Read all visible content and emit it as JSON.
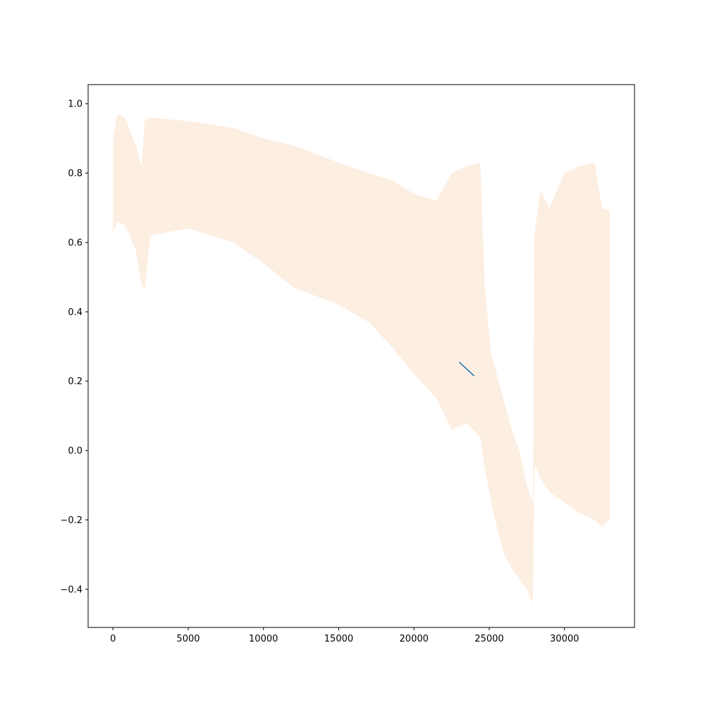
{
  "chart_data": {
    "type": "line",
    "title": "",
    "xlabel": "",
    "ylabel": "",
    "xlim": [
      -1650,
      34650
    ],
    "ylim": [
      -0.51,
      1.055
    ],
    "grid": false,
    "x_ticks": [
      0,
      5000,
      10000,
      15000,
      20000,
      25000,
      30000
    ],
    "x_tick_labels": [
      "0",
      "5000",
      "10000",
      "15000",
      "20000",
      "25000",
      "30000"
    ],
    "y_ticks": [
      -0.4,
      -0.2,
      0.0,
      0.2,
      0.4,
      0.6,
      0.8,
      1.0
    ],
    "y_tick_labels": [
      "−0.4",
      "−0.2",
      "0.0",
      "0.2",
      "0.4",
      "0.6",
      "0.8",
      "1.0"
    ],
    "series": [
      {
        "style": "band",
        "color": "#fdeee2",
        "x": [
          0,
          300,
          800,
          1500,
          1900,
          2100,
          2500,
          5000,
          8000,
          10000,
          12000,
          15000,
          17000,
          18500,
          20000,
          21500,
          22500,
          23500,
          24400,
          24700,
          25100,
          25500,
          26000,
          26500,
          27000,
          27500,
          27900,
          28000,
          28400,
          29000,
          30000,
          31000,
          32000,
          32500,
          33000
        ],
        "upper": [
          0.9,
          0.97,
          0.96,
          0.88,
          0.82,
          0.95,
          0.96,
          0.95,
          0.93,
          0.9,
          0.88,
          0.83,
          0.8,
          0.78,
          0.74,
          0.72,
          0.8,
          0.82,
          0.83,
          0.48,
          0.28,
          0.22,
          0.14,
          0.06,
          0.0,
          -0.1,
          -0.15,
          0.62,
          0.75,
          0.7,
          0.8,
          0.82,
          0.83,
          0.7,
          0.69
        ],
        "lower": [
          0.63,
          0.66,
          0.65,
          0.58,
          0.48,
          0.46,
          0.62,
          0.64,
          0.6,
          0.54,
          0.47,
          0.42,
          0.37,
          0.3,
          0.22,
          0.15,
          0.06,
          0.08,
          0.04,
          -0.05,
          -0.14,
          -0.22,
          -0.3,
          -0.34,
          -0.37,
          -0.4,
          -0.44,
          -0.04,
          -0.08,
          -0.12,
          -0.15,
          -0.18,
          -0.2,
          -0.22,
          -0.2
        ]
      },
      {
        "style": "line",
        "color": "#1f77b4",
        "x": [
          23000,
          24000
        ],
        "y": [
          0.255,
          0.215
        ]
      }
    ]
  }
}
